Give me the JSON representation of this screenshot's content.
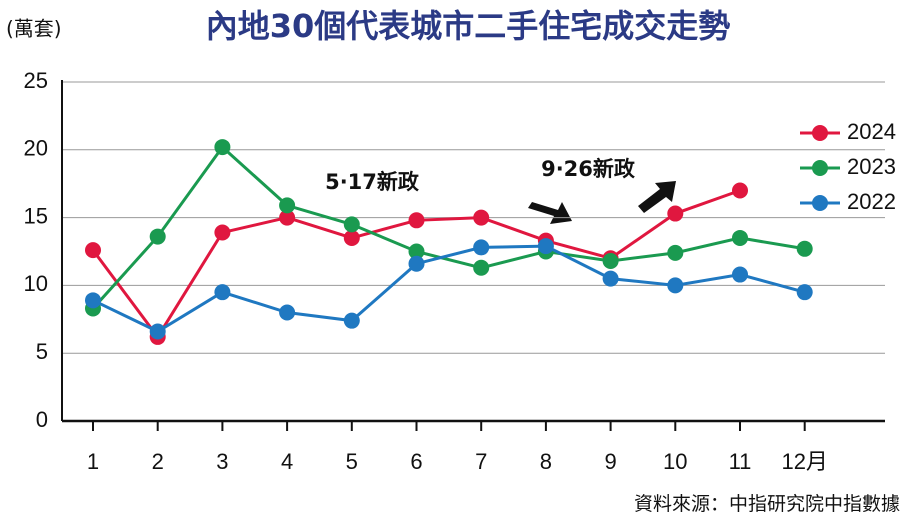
{
  "chart_data": {
    "type": "line",
    "title": "內地30個代表城市二手住宅成交走勢",
    "y_label": "(萬套)",
    "source": "資料來源：中指研究院中指數據",
    "annotations": [
      "5·17新政",
      "9·26新政"
    ],
    "categories": [
      "1",
      "2",
      "3",
      "4",
      "5",
      "6",
      "7",
      "8",
      "9",
      "10",
      "11",
      "12月"
    ],
    "series": [
      {
        "name": "2024",
        "color": "#e0173f",
        "values": [
          12.6,
          6.2,
          13.9,
          15.0,
          13.5,
          14.8,
          15.0,
          13.3,
          12.0,
          15.3,
          17.0,
          null
        ]
      },
      {
        "name": "2023",
        "color": "#1a9a50",
        "values": [
          8.3,
          13.6,
          20.2,
          15.9,
          14.5,
          12.5,
          11.3,
          12.5,
          11.8,
          12.4,
          13.5,
          12.7
        ]
      },
      {
        "name": "2022",
        "color": "#1f78c1",
        "values": [
          8.9,
          6.6,
          9.5,
          8.0,
          7.4,
          11.6,
          12.8,
          12.9,
          10.5,
          10.0,
          10.8,
          9.5
        ]
      }
    ],
    "ylim": [
      0,
      25
    ],
    "yticks": [
      0,
      5,
      10,
      15,
      20,
      25
    ],
    "grid": true,
    "legend": "right"
  }
}
